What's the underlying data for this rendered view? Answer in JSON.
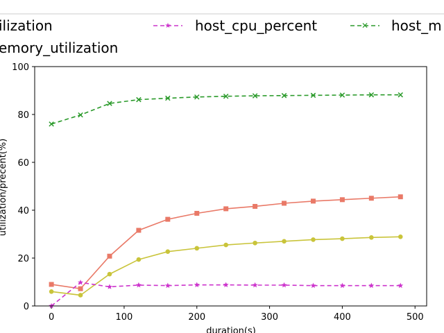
{
  "chart_data": {
    "type": "line",
    "xlabel": "duration(s)",
    "ylabel": "utilization/precent(%)",
    "xlim": [
      -23,
      516
    ],
    "ylim": [
      0,
      100
    ],
    "xticks": [
      0,
      100,
      200,
      300,
      400,
      500
    ],
    "yticks": [
      0,
      20,
      40,
      60,
      80,
      100
    ],
    "legend_placement": "top, above plot (partially cropped)",
    "legend_visible_texts": [
      "ilization",
      "host_cpu_percent",
      "host_m",
      "emory_utilization"
    ],
    "x": [
      0,
      40,
      80,
      120,
      160,
      200,
      240,
      280,
      320,
      360,
      400,
      440,
      480
    ],
    "series": [
      {
        "color": "#e97967",
        "marker": "square",
        "linestyle": "solid",
        "values": [
          9.0,
          7.2,
          20.8,
          31.6,
          36.2,
          38.7,
          40.6,
          41.6,
          42.9,
          43.8,
          44.4,
          45.0,
          45.6
        ]
      },
      {
        "color": "#c9c43a",
        "marker": "circle",
        "linestyle": "solid",
        "values": [
          6.0,
          4.5,
          13.3,
          19.4,
          22.7,
          24.1,
          25.5,
          26.3,
          27.0,
          27.7,
          28.1,
          28.6,
          28.9
        ]
      },
      {
        "name": "host_cpu_percent",
        "color": "#cc33cc",
        "marker": "star",
        "linestyle": "dashed",
        "values": [
          0.0,
          9.8,
          8.0,
          8.7,
          8.5,
          8.8,
          8.8,
          8.7,
          8.7,
          8.5,
          8.5,
          8.5,
          8.5
        ]
      },
      {
        "color": "#2a9a2a",
        "marker": "x",
        "linestyle": "dashed",
        "values": [
          76.0,
          79.8,
          84.6,
          86.2,
          86.8,
          87.3,
          87.6,
          87.8,
          87.9,
          88.0,
          88.1,
          88.2,
          88.2
        ]
      }
    ]
  }
}
